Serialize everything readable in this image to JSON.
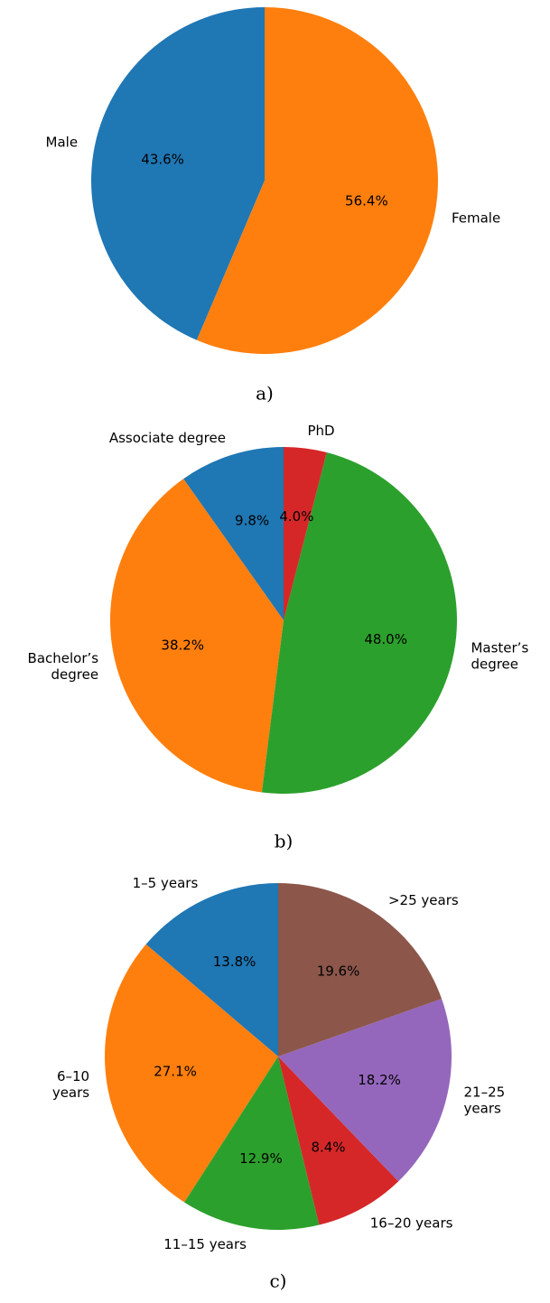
{
  "chart_data": [
    {
      "type": "pie",
      "caption": "a)",
      "categories": [
        "Male",
        "Female"
      ],
      "values": [
        43.6,
        56.4
      ],
      "value_labels": [
        "43.6%",
        "56.4%"
      ],
      "colors": [
        "#1f77b4",
        "#ff7f0e"
      ]
    },
    {
      "type": "pie",
      "caption": "b)",
      "categories": [
        "Associate degree",
        "Bachelor’s\ndegree",
        "Master’s\ndegree",
        "PhD"
      ],
      "values": [
        9.8,
        38.2,
        48.0,
        4.0
      ],
      "value_labels": [
        "9.8%",
        "38.2%",
        "48.0%",
        "4.0%"
      ],
      "colors": [
        "#1f77b4",
        "#ff7f0e",
        "#2ca02c",
        "#d62728"
      ]
    },
    {
      "type": "pie",
      "caption": "c)",
      "categories": [
        "1–5 years",
        "6–10\nyears",
        "11–15 years",
        "16–20 years",
        "21–25\nyears",
        ">25 years"
      ],
      "values": [
        13.8,
        27.1,
        12.9,
        8.4,
        18.2,
        19.6
      ],
      "value_labels": [
        "13.8%",
        "27.1%",
        "12.9%",
        "8.4%",
        "18.2%",
        "19.6%"
      ],
      "colors": [
        "#1f77b4",
        "#ff7f0e",
        "#2ca02c",
        "#d62728",
        "#9467bd",
        "#8c564b"
      ]
    }
  ]
}
